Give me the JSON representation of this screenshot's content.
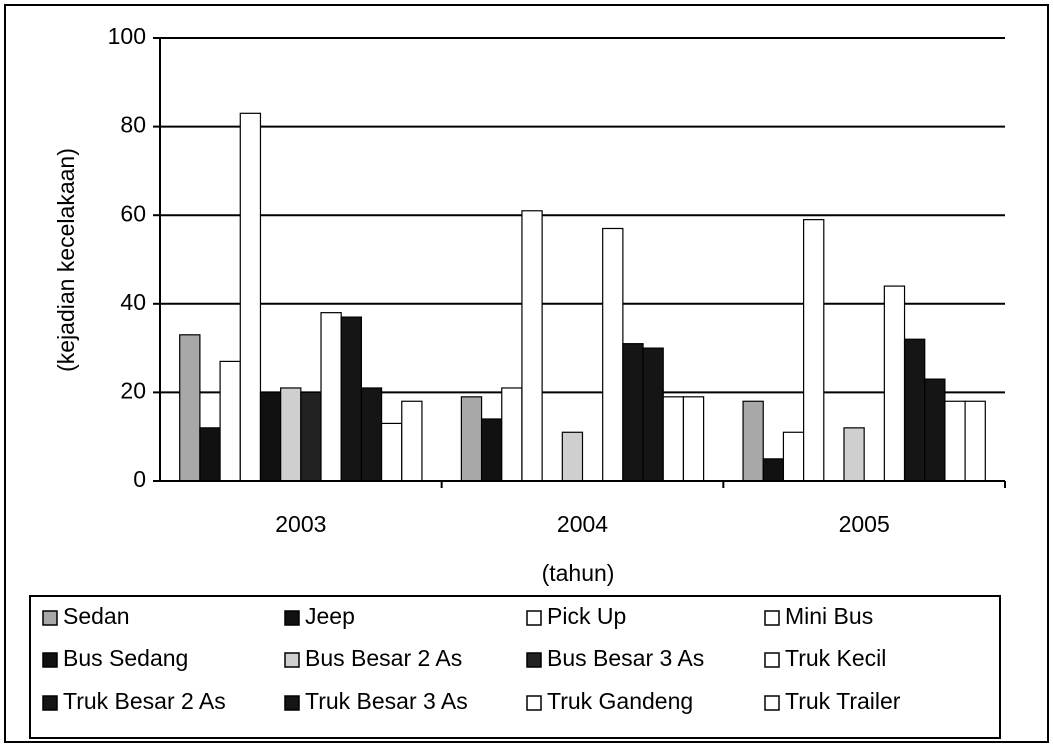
{
  "chart_data": {
    "type": "bar",
    "categories": [
      "2003",
      "2004",
      "2005"
    ],
    "x_label": "(tahun)",
    "y_label": "(kejadian kecelakaan)",
    "ylim": [
      0,
      100
    ],
    "yticks": [
      0,
      20,
      40,
      60,
      80,
      100
    ],
    "grid": true,
    "legend": "bottom",
    "series": [
      {
        "name": "Sedan",
        "color": "#a8a8a8",
        "values": [
          33,
          19,
          18
        ]
      },
      {
        "name": "Jeep",
        "color": "#111111",
        "values": [
          12,
          14,
          5
        ]
      },
      {
        "name": "Pick Up",
        "color": "#ffffff",
        "values": [
          27,
          21,
          11
        ]
      },
      {
        "name": "Mini Bus",
        "color": "#ffffff",
        "values": [
          83,
          61,
          59
        ]
      },
      {
        "name": "Bus Sedang",
        "color": "#111111",
        "values": [
          20,
          0,
          0
        ]
      },
      {
        "name": "Bus Besar 2 As",
        "color": "#cfcfcf",
        "values": [
          21,
          11,
          12
        ]
      },
      {
        "name": "Bus Besar 3 As",
        "color": "#222222",
        "values": [
          20,
          0,
          0
        ]
      },
      {
        "name": "Truk Kecil",
        "color": "#ffffff",
        "values": [
          38,
          57,
          44
        ]
      },
      {
        "name": "Truk Besar 2 As",
        "color": "#151515",
        "values": [
          37,
          31,
          32
        ]
      },
      {
        "name": "Truk Besar 3 As",
        "color": "#151515",
        "values": [
          21,
          30,
          23
        ]
      },
      {
        "name": "Truk Gandeng",
        "color": "#ffffff",
        "values": [
          13,
          19,
          18
        ]
      },
      {
        "name": "Truk Trailer",
        "color": "#ffffff",
        "values": [
          18,
          19,
          18
        ]
      }
    ]
  }
}
